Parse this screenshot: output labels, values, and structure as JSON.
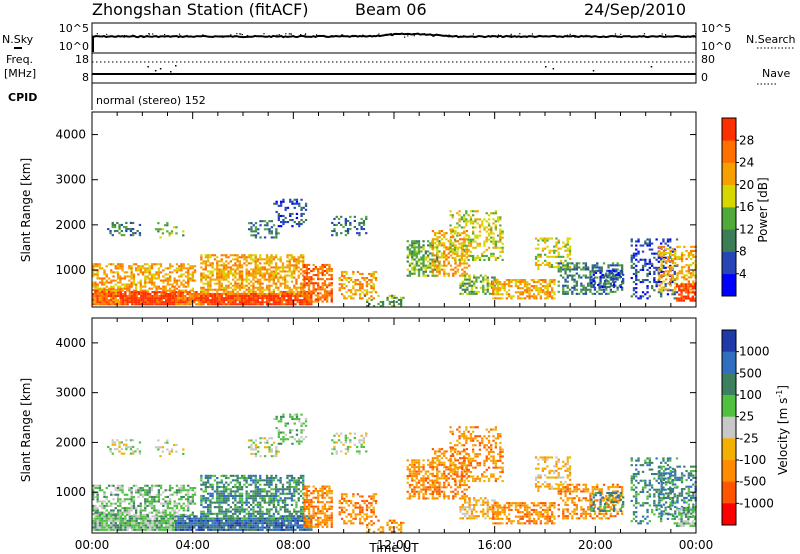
{
  "header": {
    "station_title": "Zhongshan Station (fitACF)",
    "beam": "Beam 06",
    "date": "24/Sep/2010"
  },
  "param_panels": {
    "nsky_label": "N.Sky",
    "nsky_ticks": [
      "10^5",
      "10^0"
    ],
    "nsearch_label": "N.Search",
    "nsearch_ticks": [
      "10^5",
      "10^0"
    ],
    "freq_label_line1": "Freq.",
    "freq_label_line2": "[MHz]",
    "freq_ticks": [
      "18",
      "8"
    ],
    "nave_label": "Nave",
    "nave_ticks": [
      "80",
      "0"
    ],
    "cpid_label": "CPID",
    "cpid_text": "normal (stereo) 152"
  },
  "chart_data": [
    {
      "type": "heatmap",
      "name": "power",
      "ylabel": "Slant Range [km]",
      "yticks": [
        "1000",
        "2000",
        "3000",
        "4000"
      ],
      "ylim": [
        180,
        4500
      ],
      "xlim": [
        0,
        24
      ],
      "colorbar": {
        "label": "Power [dB]",
        "ticks": [
          "4",
          "8",
          "12",
          "16",
          "20",
          "24",
          "28"
        ],
        "colors": [
          "#0000ff",
          "#2646b8",
          "#3c7d55",
          "#4faa3a",
          "#d7d700",
          "#f5a000",
          "#ff7000",
          "#ff3000"
        ]
      }
    },
    {
      "type": "heatmap",
      "name": "velocity",
      "ylabel": "Slant Range [km]",
      "yticks": [
        "1000",
        "2000",
        "3000",
        "4000"
      ],
      "ylim": [
        180,
        4500
      ],
      "xlim": [
        0,
        24
      ],
      "xticks": [
        "00:00",
        "04:00",
        "08:00",
        "12:00",
        "16:00",
        "20:00",
        "00:00"
      ],
      "xlabel": "Time UT",
      "colorbar": {
        "label": "Velocity [m s",
        "label_sup": "-1",
        "label_close": "]",
        "ticks": [
          "1000",
          "500",
          "100",
          "25",
          "-25",
          "-100",
          "-500",
          "-1000"
        ],
        "colors": [
          "#1f3aa8",
          "#2f6fbe",
          "#3c8060",
          "#4fc040",
          "#c8c8c8",
          "#f2b000",
          "#ff8c00",
          "#ff5500",
          "#ff0000"
        ]
      }
    }
  ]
}
